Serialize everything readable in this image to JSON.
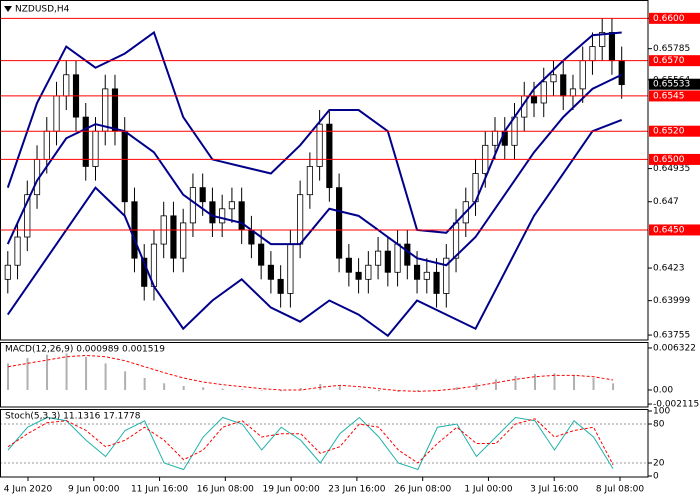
{
  "chart_data": [
    {
      "type": "candlestick",
      "title": "NZDUSD,H4",
      "open": [
        0.6415,
        0.6425,
        0.6445,
        0.6475,
        0.65,
        0.652,
        0.6545,
        0.656,
        0.653,
        0.6495,
        0.652,
        0.655,
        0.652,
        0.647,
        0.643,
        0.641,
        0.644,
        0.646,
        0.643,
        0.6455,
        0.648,
        0.647,
        0.6455,
        0.6465,
        0.647,
        0.645,
        0.644,
        0.6425,
        0.6415,
        0.6405,
        0.644,
        0.6475,
        0.6495,
        0.6525,
        0.648,
        0.643,
        0.642,
        0.6415,
        0.6425,
        0.6435,
        0.642,
        0.644,
        0.6425,
        0.6415,
        0.642,
        0.6405,
        0.643,
        0.6455,
        0.647,
        0.649,
        0.651,
        0.652,
        0.651,
        0.653,
        0.6545,
        0.654,
        0.6555,
        0.656,
        0.6545,
        0.655,
        0.657,
        0.658,
        0.659,
        0.657
      ],
      "high": [
        0.6435,
        0.6455,
        0.6485,
        0.651,
        0.653,
        0.6555,
        0.657,
        0.657,
        0.654,
        0.653,
        0.656,
        0.656,
        0.653,
        0.648,
        0.644,
        0.645,
        0.647,
        0.647,
        0.6465,
        0.649,
        0.649,
        0.648,
        0.6475,
        0.648,
        0.648,
        0.646,
        0.645,
        0.6435,
        0.6425,
        0.645,
        0.6485,
        0.6505,
        0.6535,
        0.6535,
        0.649,
        0.644,
        0.643,
        0.6435,
        0.6445,
        0.6445,
        0.645,
        0.645,
        0.6435,
        0.643,
        0.643,
        0.644,
        0.6465,
        0.648,
        0.65,
        0.652,
        0.653,
        0.653,
        0.654,
        0.6555,
        0.6555,
        0.6565,
        0.657,
        0.657,
        0.656,
        0.658,
        0.659,
        0.66,
        0.66,
        0.658
      ],
      "low": [
        0.6405,
        0.6415,
        0.6435,
        0.6465,
        0.649,
        0.651,
        0.6535,
        0.652,
        0.6485,
        0.6485,
        0.651,
        0.651,
        0.646,
        0.642,
        0.64,
        0.64,
        0.643,
        0.642,
        0.642,
        0.6445,
        0.646,
        0.6445,
        0.6445,
        0.6455,
        0.644,
        0.643,
        0.6415,
        0.6405,
        0.6395,
        0.6395,
        0.643,
        0.6465,
        0.6485,
        0.647,
        0.642,
        0.641,
        0.6405,
        0.6405,
        0.6415,
        0.641,
        0.641,
        0.6415,
        0.6405,
        0.6405,
        0.6395,
        0.6395,
        0.642,
        0.6445,
        0.646,
        0.648,
        0.65,
        0.65,
        0.65,
        0.652,
        0.653,
        0.653,
        0.6545,
        0.6535,
        0.6535,
        0.654,
        0.656,
        0.657,
        0.656,
        0.6543
      ],
      "close": [
        0.6425,
        0.6445,
        0.6475,
        0.65,
        0.652,
        0.6545,
        0.656,
        0.653,
        0.6495,
        0.652,
        0.655,
        0.652,
        0.647,
        0.643,
        0.641,
        0.644,
        0.646,
        0.643,
        0.6455,
        0.648,
        0.647,
        0.6455,
        0.6465,
        0.647,
        0.645,
        0.644,
        0.6425,
        0.6415,
        0.6405,
        0.644,
        0.6475,
        0.6495,
        0.6525,
        0.648,
        0.643,
        0.642,
        0.6415,
        0.6425,
        0.6435,
        0.642,
        0.644,
        0.6425,
        0.6415,
        0.642,
        0.6405,
        0.643,
        0.6455,
        0.647,
        0.649,
        0.651,
        0.652,
        0.651,
        0.653,
        0.6545,
        0.654,
        0.6555,
        0.656,
        0.6545,
        0.655,
        0.657,
        0.658,
        0.659,
        0.657,
        0.6553
      ],
      "bands": {
        "x": [
          0,
          3,
          6,
          9,
          12,
          15,
          18,
          21,
          24,
          27,
          30,
          33,
          36,
          39,
          42,
          45,
          48,
          51,
          54,
          57,
          60,
          63
        ],
        "color": "#00008b",
        "series": [
          {
            "values": [
              0.648,
              0.654,
              0.658,
              0.6565,
              0.6575,
              0.659,
              0.653,
              0.65,
              0.6495,
              0.649,
              0.651,
              0.6535,
              0.6535,
              0.652,
              0.645,
              0.6448,
              0.647,
              0.652,
              0.655,
              0.657,
              0.6588,
              0.659
            ]
          },
          {
            "values": [
              0.644,
              0.6485,
              0.6515,
              0.6525,
              0.652,
              0.6505,
              0.6475,
              0.646,
              0.6455,
              0.644,
              0.644,
              0.6465,
              0.646,
              0.6445,
              0.643,
              0.6425,
              0.6445,
              0.6475,
              0.6505,
              0.653,
              0.655,
              0.656
            ]
          },
          {
            "values": [
              0.639,
              0.642,
              0.645,
              0.648,
              0.646,
              0.641,
              0.638,
              0.64,
              0.6415,
              0.6395,
              0.6385,
              0.64,
              0.639,
              0.6375,
              0.64,
              0.639,
              0.638,
              0.642,
              0.646,
              0.649,
              0.652,
              0.6528
            ]
          }
        ]
      },
      "levels": [
        {
          "value": 0.66,
          "label": "0.6600"
        },
        {
          "value": 0.657,
          "label": "0.6570"
        },
        {
          "value": 0.6545,
          "label": "0.6545"
        },
        {
          "value": 0.652,
          "label": "0.6520"
        },
        {
          "value": 0.65,
          "label": "0.6500"
        },
        {
          "value": 0.645,
          "label": "0.6450"
        }
      ],
      "level_color": "#ff0000",
      "last_price": {
        "value": 0.65533,
        "label": "0.65533"
      },
      "xlim": [
        -0.8,
        65.7
      ],
      "ylim": [
        0.6372,
        0.6613
      ],
      "yticks": [
        0.66001,
        0.65785,
        0.65564,
        0.64935,
        0.647,
        0.6423,
        0.63999,
        0.63755
      ],
      "time_labels": [
        "4 Jun 2020",
        "9 Jun 00:00",
        "11 Jun 16:00",
        "16 Jun 08:00",
        "19 Jun 00:00",
        "23 Jun 16:00",
        "26 Jun 08:00",
        "1 Jul 00:00",
        "3 Jul 16:00",
        "8 Jul 08:00"
      ]
    },
    {
      "type": "macd",
      "title": "MACD(12,26,9) 0.000989 0.001519",
      "histogram": [
        0.004,
        0.0048,
        0.0053,
        0.0055,
        0.005,
        0.004,
        0.0028,
        0.0018,
        0.001,
        0.0006,
        0.0004,
        0.0002,
        0.0001,
        -0.0001,
        -0.0002,
        0.0003,
        0.0009,
        0.0006,
        0.0001,
        -0.0002,
        -0.0003,
        -0.0002,
        0,
        0.0004,
        0.001,
        0.0016,
        0.0021,
        0.0024,
        0.0025,
        0.0022,
        0.0018,
        0.001
      ],
      "histogram_color": "#b0b0b0",
      "signal": {
        "color": "#ff0000",
        "values": [
          0.0035,
          0.004,
          0.0045,
          0.005,
          0.0052,
          0.005,
          0.0044,
          0.0035,
          0.0026,
          0.0018,
          0.0012,
          0.0008,
          0.0005,
          0.0002,
          0,
          0,
          0.0004,
          0.0007,
          0.0005,
          0.0002,
          -0.0001,
          -0.0002,
          -0.0001,
          0.0002,
          0.0006,
          0.0011,
          0.0016,
          0.002,
          0.0022,
          0.0022,
          0.002,
          0.0015
        ]
      },
      "ylim": [
        -0.00256,
        0.00722
      ],
      "yticks": [
        0.006322,
        {
          "value": 0,
          "label": "0.00"
        },
        -0.002115
      ]
    },
    {
      "type": "stochastic",
      "title": "Stoch(5,3,3) 11.1316 17.1778",
      "series": [
        {
          "color": "#20b2aa",
          "dash": false,
          "values": [
            40,
            75,
            90,
            85,
            55,
            30,
            70,
            85,
            20,
            10,
            60,
            90,
            80,
            40,
            75,
            55,
            20,
            65,
            90,
            60,
            20,
            10,
            75,
            80,
            30,
            60,
            90,
            85,
            40,
            85,
            60,
            11.1316
          ]
        },
        {
          "color": "#ff0000",
          "dash": true,
          "values": [
            45,
            65,
            82,
            85,
            70,
            45,
            55,
            75,
            55,
            25,
            40,
            75,
            85,
            60,
            65,
            65,
            35,
            45,
            80,
            75,
            40,
            20,
            50,
            75,
            50,
            50,
            80,
            88,
            60,
            70,
            75,
            17.1778
          ]
        }
      ],
      "levels": [
        80,
        20
      ],
      "ylim": [
        0,
        100
      ],
      "yticks": [
        100,
        80,
        20,
        0
      ]
    }
  ]
}
